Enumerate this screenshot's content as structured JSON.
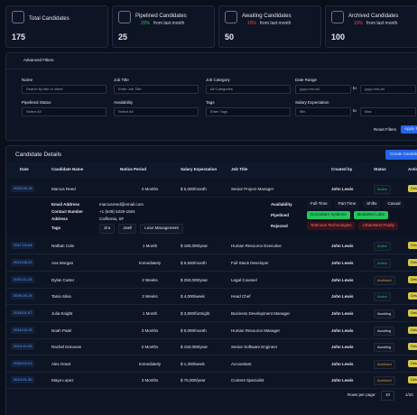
{
  "stats": [
    {
      "label": "Total Candidates",
      "value": "175"
    },
    {
      "label": "Pipelined Candidates",
      "value": "25",
      "change": "20%",
      "note": "from last month",
      "color": "#22c55e"
    },
    {
      "label": "Awaiting Candidates",
      "value": "50",
      "change": "10%",
      "note": "from last month",
      "color": "#ef4444"
    },
    {
      "label": "Archived Candidates",
      "value": "100",
      "change": "10%",
      "note": "from last month",
      "color": "#ef4444"
    }
  ],
  "filters": {
    "title": "Advanced Filters",
    "to": "to",
    "reset": "Reset Filters",
    "apply": "Apply Filters",
    "fields": [
      {
        "label": "Name",
        "inputs": [
          "Search by title or client"
        ]
      },
      {
        "label": "Job Title",
        "inputs": [
          "Enter Job Title"
        ]
      },
      {
        "label": "Job Category",
        "inputs": [
          "All Categories"
        ]
      },
      {
        "label": "Date Range",
        "inputs": [
          "yyyy-mm-dd",
          "yyyy-mm-dd"
        ]
      },
      {
        "label": "Pipelined Status",
        "inputs": [
          "Select All"
        ]
      },
      {
        "label": "Availability",
        "inputs": [
          "Select All"
        ]
      },
      {
        "label": "Tags",
        "inputs": [
          "Enter Tags"
        ]
      },
      {
        "label": "Salary Expectation",
        "inputs": [
          "Min",
          "Max"
        ]
      }
    ]
  },
  "table": {
    "title": "Candidate Details",
    "create": "Create Candidate",
    "details": "Details",
    "headers": [
      "Date",
      "Candidate Name",
      "Notice Period",
      "Salary Expectation",
      "Job Title",
      "Created by",
      "Status",
      "Actions"
    ],
    "status_colors": {
      "Active": "#22c55e",
      "Archived": "#f59e0b",
      "Awaiting": "#e5e7eb"
    },
    "rows": [
      [
        "2023-06-18",
        "Marcus Reed",
        "3 Months",
        "$ 5,000/month",
        "Senior Project Manager",
        "John Lewis",
        "Active"
      ],
      [
        "2017-03-04",
        "Nathan Cole",
        "1 Month",
        "$ 180,000/year",
        "Human Resource Executive",
        "John Lewis",
        "Active"
      ],
      [
        "2019-08-22",
        "Ava Morgan",
        "Immediately",
        "$ 6,500/month",
        "Full-Stack Developer",
        "John Lewis",
        "Active"
      ],
      [
        "2010-11-13",
        "Dylan Carter",
        "2 Weeks",
        "$ 250,000/year",
        "Legal Counsel",
        "John Lewis",
        "Archived"
      ],
      [
        "2009-06-14",
        "Tania Silva",
        "3 Weeks",
        "$ 4,000/week",
        "Head Chef",
        "John Lewis",
        "Active"
      ],
      [
        "2016-01-07",
        "Julia Knight",
        "1 Month",
        "$ 3,800/fortnight",
        "Business Development Manager",
        "John Lewis",
        "Awaiting"
      ],
      [
        "2016-04-13",
        "Noah Patel",
        "3 Months",
        "$ 9,000/month",
        "Human Resource Manager",
        "John Lewis",
        "Awaiting"
      ],
      [
        "2019-10-03",
        "Rachel Donovan",
        "2 Months",
        "$ 150,000/year",
        "Senior Software Engineer",
        "John Lewis",
        "Awaiting"
      ],
      [
        "2020-03-21",
        "Alex Grant",
        "Immediately",
        "$ 1,300/week",
        "Accountant",
        "John Lewis",
        "Archived"
      ],
      [
        "2014-01-30",
        "Maya Lopez",
        "3 Months",
        "$ 75,000/year",
        "Content Specialist",
        "John Lewis",
        "Archived"
      ]
    ],
    "expanded": {
      "info": [
        [
          "Email Address",
          "marcusreed@email.com"
        ],
        [
          "Contact Number",
          "+1 (649) 5225-1504"
        ],
        [
          "Address",
          "California, SF"
        ]
      ],
      "tags_label": "Tags",
      "tags": [
        "Jira",
        "Jwell",
        "Lean Management"
      ],
      "groups": [
        {
          "label": "Availability",
          "items": [
            "Full-Time",
            "Part-Time",
            "Shifts",
            "Casual"
          ],
          "bg": "#111827",
          "fg": "#e5e7eb"
        },
        {
          "label": "Pipelined",
          "items": [
            "DocuWare Systems",
            "MediaNet Labs"
          ],
          "bg": "#22c55e",
          "fg": "#052e16"
        },
        {
          "label": "Rejected",
          "items": [
            "Telenova Technologies",
            "UrbanNest Realty"
          ],
          "bg": "#3b1219",
          "fg": "#f87171"
        }
      ]
    }
  },
  "pagination": {
    "label": "Rows per page:",
    "size": "10",
    "page": "1/10"
  }
}
